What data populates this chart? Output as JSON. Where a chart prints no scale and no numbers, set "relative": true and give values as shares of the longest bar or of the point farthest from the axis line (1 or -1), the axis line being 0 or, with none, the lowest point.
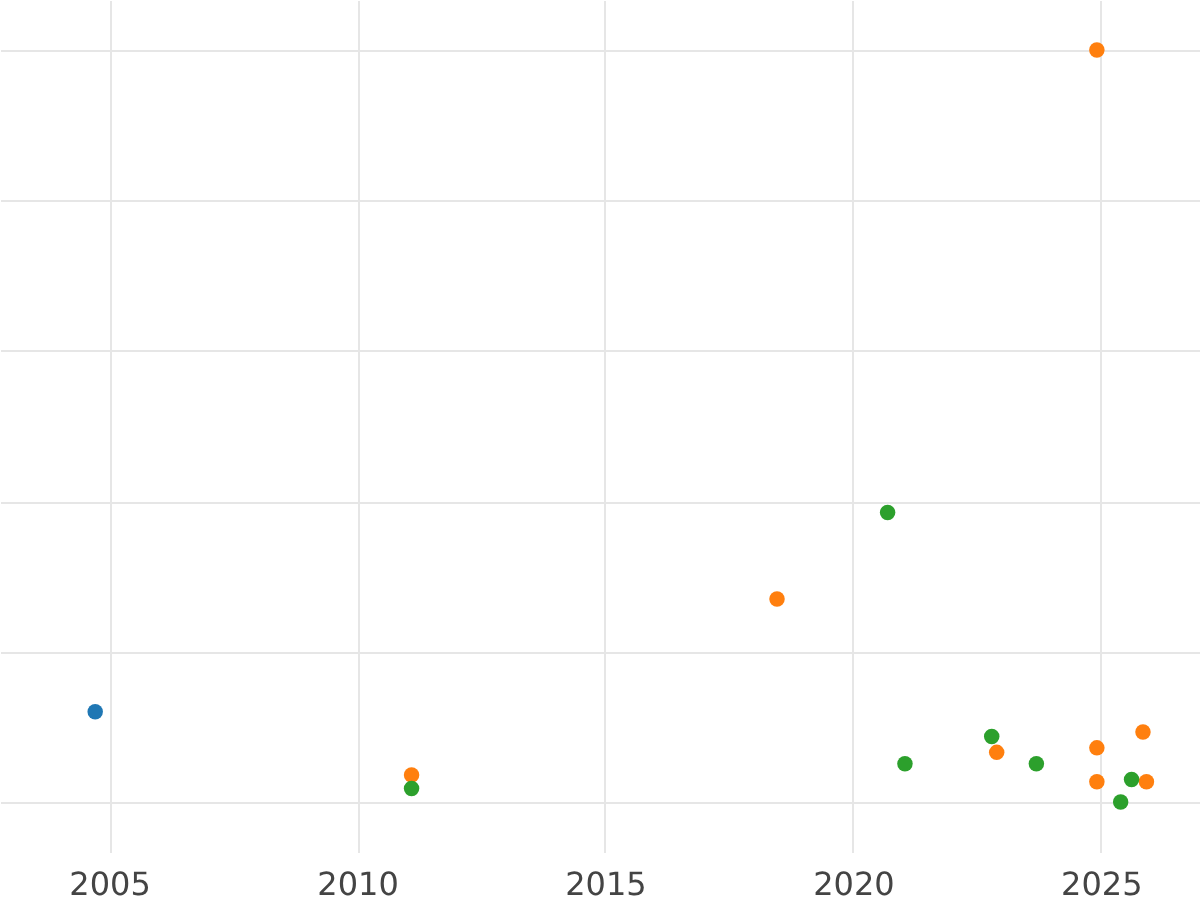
{
  "chart_data": {
    "type": "scatter",
    "relative": true,
    "marker": "circle",
    "grid": true,
    "legend": false,
    "xlim": [
      2002.8,
      2027
    ],
    "xticks": [
      2005,
      2010,
      2015,
      2020,
      2025
    ],
    "series": [
      {
        "color": "#1f77b4",
        "x": [
          2004.72
        ],
        "values": [
          0.12
        ]
      },
      {
        "color": "#ff7f0e",
        "x": [
          2024.92,
          2018.47,
          2011.1,
          2022.9,
          2024.92,
          2024.92,
          2025.85,
          2025.92
        ],
        "values": [
          1,
          0.27,
          0.036,
          0.066,
          0.072,
          0.027,
          0.093,
          0.027
        ]
      },
      {
        "color": "#2ca02c",
        "x": [
          2020.7,
          2011.1,
          2022.8,
          2021.05,
          2023.7,
          2025.4,
          2025.62
        ],
        "values": [
          0.385,
          0.018,
          0.087,
          0.051,
          0.051,
          0,
          0.03
        ]
      }
    ]
  }
}
